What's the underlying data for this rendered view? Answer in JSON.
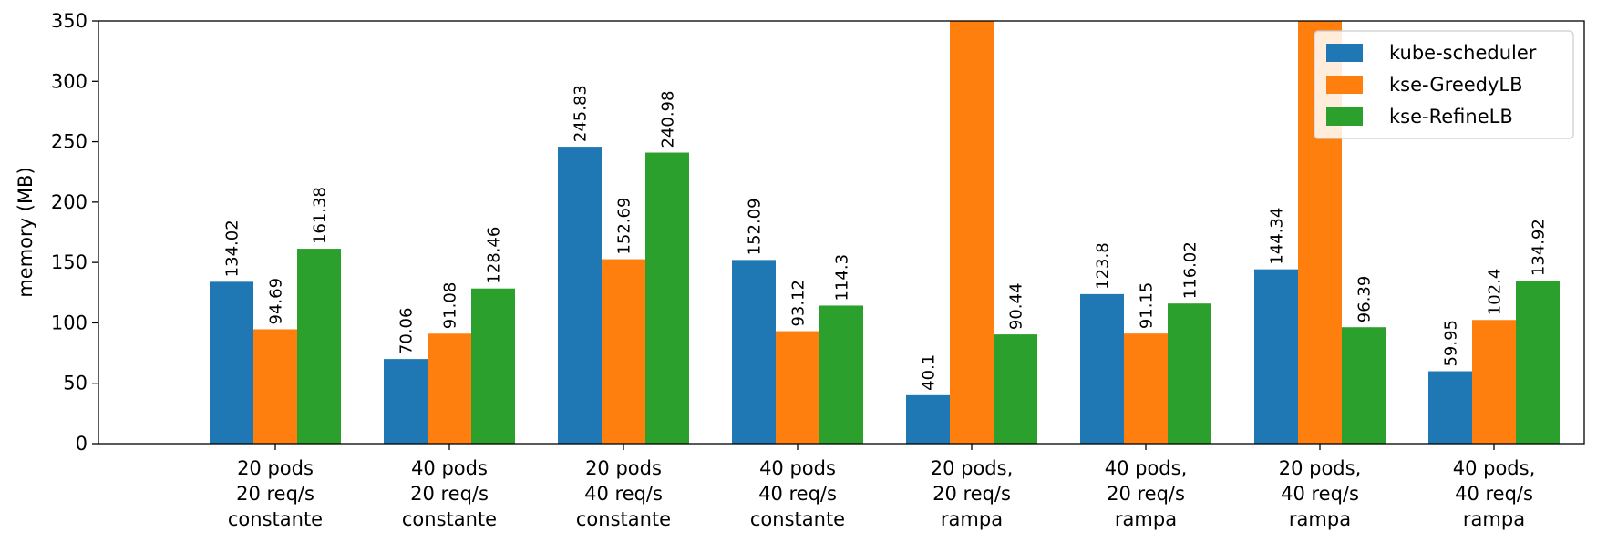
{
  "chart_data": {
    "type": "bar",
    "title": "",
    "xlabel": "",
    "ylabel": "memory (MB)",
    "ylim": [
      0,
      350
    ],
    "yticks": [
      0,
      50,
      100,
      150,
      200,
      250,
      300,
      350
    ],
    "grid": false,
    "legend_position": "top-right",
    "categories": [
      [
        "20 pods",
        "20 req/s",
        "constante"
      ],
      [
        "40 pods",
        "20 req/s",
        "constante"
      ],
      [
        "20 pods",
        "40 req/s",
        "constante"
      ],
      [
        "40 pods",
        "40 req/s",
        "constante"
      ],
      [
        "20 pods,",
        "20 req/s",
        "rampa"
      ],
      [
        "40 pods,",
        "20 req/s",
        "rampa"
      ],
      [
        "20 pods,",
        "40 req/s",
        "rampa"
      ],
      [
        "40 pods,",
        "40 req/s",
        "rampa"
      ]
    ],
    "series": [
      {
        "name": "kube-scheduler",
        "color": "#1f77b4",
        "values": [
          134.02,
          70.06,
          245.83,
          152.09,
          40.1,
          123.8,
          144.34,
          59.95
        ],
        "labels": [
          "134.02",
          "70.06",
          "245.83",
          "152.09",
          "40.1",
          "123.8",
          "144.34",
          "59.95"
        ]
      },
      {
        "name": "kse-GreedyLB",
        "color": "#ff7f0e",
        "values": [
          94.69,
          91.08,
          152.69,
          93.12,
          350,
          91.15,
          350,
          102.4
        ],
        "labels": [
          "94.69",
          "91.08",
          "152.69",
          "93.12",
          "",
          "91.15",
          "",
          "102.4"
        ]
      },
      {
        "name": "kse-RefineLB",
        "color": "#2ca02c",
        "values": [
          161.38,
          128.46,
          240.98,
          114.3,
          90.44,
          116.02,
          96.39,
          134.92
        ],
        "labels": [
          "161.38",
          "128.46",
          "240.98",
          "114.3",
          "90.44",
          "116.02",
          "96.39",
          "134.92"
        ]
      }
    ]
  }
}
